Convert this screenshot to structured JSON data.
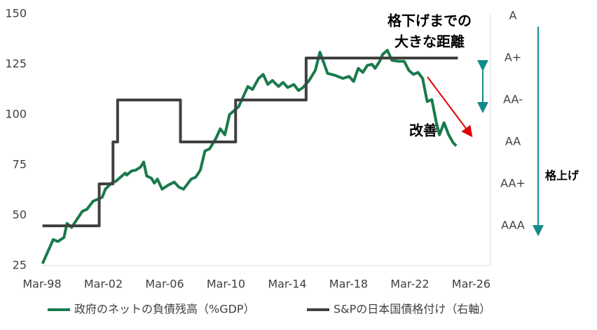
{
  "chart_data": {
    "type": "line",
    "xlim": [
      1998.17,
      2027.43
    ],
    "xticks": [
      {
        "value": 1998.17,
        "label": "Mar-98"
      },
      {
        "value": 2002.17,
        "label": "Mar-02"
      },
      {
        "value": 2006.17,
        "label": "Mar-06"
      },
      {
        "value": 2010.17,
        "label": "Mar-10"
      },
      {
        "value": 2014.17,
        "label": "Mar-14"
      },
      {
        "value": 2018.17,
        "label": "Mar-18"
      },
      {
        "value": 2022.17,
        "label": "Mar-22"
      },
      {
        "value": 2026.17,
        "label": "Mar-26"
      }
    ],
    "ylim": [
      25,
      150
    ],
    "yticks": [
      25,
      50,
      75,
      100,
      125,
      150
    ],
    "y2lim": [
      -0.95,
      5.05
    ],
    "y2ticks": [
      {
        "value": 0,
        "label": "AAA"
      },
      {
        "value": 1,
        "label": "AA+"
      },
      {
        "value": 2,
        "label": "AA"
      },
      {
        "value": 3,
        "label": "AA-"
      },
      {
        "value": 4,
        "label": "A+"
      },
      {
        "value": 5,
        "label": "A"
      }
    ],
    "grid": false,
    "series": [
      {
        "name": "政府のネットの負債残高（%GDP）",
        "color": "#1a7a4c",
        "x": [
          1998.2,
          1998.9,
          1999.2,
          1999.6,
          1999.8,
          2000.1,
          2000.8,
          2001.1,
          2001.5,
          2002.1,
          2002.3,
          2002.7,
          2003.0,
          2003.3,
          2003.6,
          2003.7,
          2004.0,
          2004.3,
          2004.6,
          2004.8,
          2005.0,
          2005.3,
          2005.5,
          2005.7,
          2006.0,
          2006.4,
          2006.8,
          2007.1,
          2007.4,
          2007.9,
          2008.2,
          2008.5,
          2008.8,
          2009.1,
          2009.5,
          2009.8,
          2010.1,
          2010.4,
          2010.7,
          2011.0,
          2011.3,
          2011.6,
          2011.9,
          2012.3,
          2012.6,
          2012.9,
          2013.2,
          2013.6,
          2013.9,
          2014.2,
          2014.6,
          2014.9,
          2015.2,
          2015.6,
          2016.0,
          2016.3,
          2016.4,
          2016.8,
          2017.3,
          2017.8,
          2018.2,
          2018.5,
          2018.8,
          2019.1,
          2019.4,
          2019.7,
          2019.9,
          2020.2,
          2020.4,
          2020.7,
          2021.0,
          2021.4,
          2021.8,
          2022.1,
          2022.4,
          2022.7,
          2023.0,
          2023.3,
          2023.6,
          2023.9,
          2024.1,
          2024.4,
          2024.7,
          2025.0,
          2025.2
        ],
        "values": [
          26,
          38,
          37,
          39,
          46,
          44,
          52,
          53,
          57,
          59,
          63,
          66,
          67,
          69,
          71,
          70,
          72,
          72.5,
          74,
          76.5,
          69.5,
          68.5,
          66,
          68,
          63,
          65,
          66.5,
          64,
          63,
          68,
          69,
          72.5,
          82,
          83,
          88,
          93,
          90,
          100,
          102,
          104,
          109,
          114,
          112.5,
          118,
          120,
          115,
          117,
          114,
          116,
          113.5,
          115,
          112,
          113.5,
          117,
          122,
          131,
          129,
          120.5,
          119.5,
          118,
          119,
          116.5,
          123,
          121,
          124.5,
          125,
          123,
          126.5,
          130,
          132,
          127,
          126.5,
          126.5,
          122,
          120,
          121,
          118,
          106.5,
          107.5,
          96,
          90,
          96,
          90,
          86,
          84.5
        ]
      },
      {
        "name": "S&Pの日本国債格付け（右軸）",
        "color": "#404040",
        "axis": "y2",
        "step": "after",
        "x": [
          1998.2,
          2001.9,
          2002.8,
          2003.1,
          2007.2,
          2010.8,
          2015.4,
          2025.3
        ],
        "values": [
          0,
          1,
          2,
          3,
          2,
          3,
          4,
          4
        ]
      }
    ],
    "annotations": {
      "downgrade_gap": [
        "格下げまでの",
        "大きな距離"
      ],
      "improvement": "改善",
      "upgrade": "格上げ"
    }
  }
}
